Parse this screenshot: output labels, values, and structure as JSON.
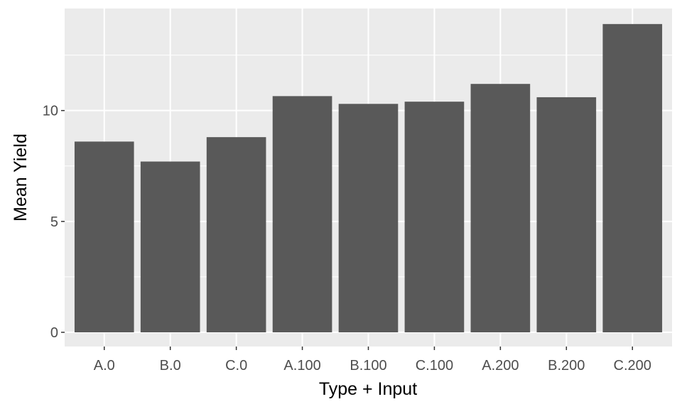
{
  "chart_data": {
    "type": "bar",
    "categories": [
      "A.0",
      "B.0",
      "C.0",
      "A.100",
      "B.100",
      "C.100",
      "A.200",
      "B.200",
      "C.200"
    ],
    "values": [
      8.6,
      7.7,
      8.8,
      10.65,
      10.3,
      10.4,
      11.2,
      10.6,
      13.9
    ],
    "xlabel": "Type + Input",
    "ylabel": "Mean Yield",
    "ylim": [
      0,
      14.6
    ],
    "yticks": [
      0,
      5,
      10
    ],
    "yminor": [
      2.5,
      7.5,
      12.5
    ],
    "grid": true,
    "colors": {
      "panel": "#ebebeb",
      "grid": "#ffffff",
      "bar": "#595959",
      "tick_text": "#4d4d4d",
      "axis_text": "#000000"
    }
  }
}
